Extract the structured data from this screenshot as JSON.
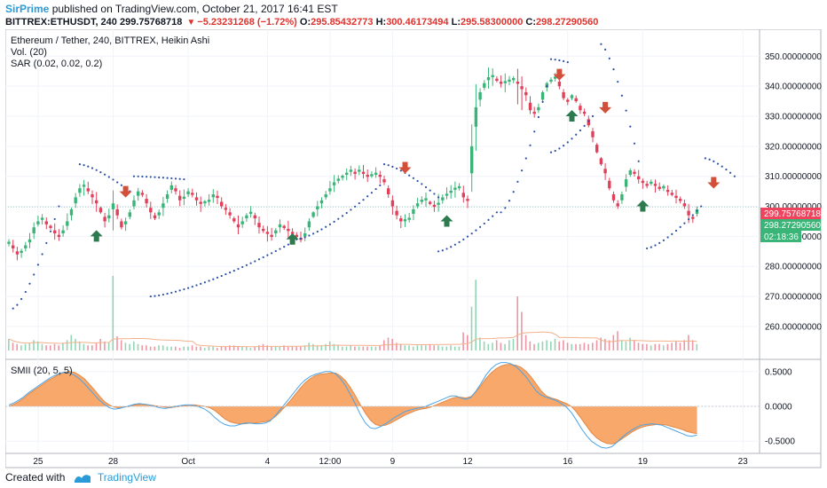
{
  "header": {
    "author": "SirPrime",
    "published_text": "published on TradingView.com, October 21, 2017 16:41 EST"
  },
  "ohlc_line": {
    "symbol": "BITTREX:ETHUSDT, 240",
    "last": "299.75768718",
    "change": "−5.23231268 (−1.72%)",
    "open_label": "O:",
    "open": "295.85432773",
    "high_label": "H:",
    "high": "300.46173494",
    "low_label": "L:",
    "low": "295.58300000",
    "close_label": "C:",
    "close": "298.27290560"
  },
  "footer": {
    "created_with": "Created with",
    "brand": "TradingView"
  },
  "colors": {
    "up": "#3bb478",
    "down": "#e0405a",
    "sar": "#2c50a8",
    "smii_fill": "#f8a86a",
    "smii_signal": "#4ba3e6",
    "buy_arrow": "#2e7a4f",
    "sell_arrow": "#d2503a",
    "last_price_bg": "#f0435e",
    "close_price_bg": "#3bb478",
    "timer_bg": "#3bb478"
  },
  "chart_data": [
    {
      "type": "candlestick",
      "title": "Ethereum / Tether, 240, BITTREX, Heikin Ashi",
      "indicators": [
        "Vol. (20)",
        "SAR (0.02, 0.02, 0.2)"
      ],
      "ylim": [
        252,
        356
      ],
      "y_ticks": [
        "350.00000000",
        "340.00000000",
        "330.00000000",
        "320.00000000",
        "310.00000000",
        "300.00000000",
        "290.00000000",
        "280.00000000",
        "270.00000000",
        "260.00000000"
      ],
      "x_ticks": [
        {
          "label": "25",
          "bar": 7
        },
        {
          "label": "28",
          "bar": 25
        },
        {
          "label": "Oct",
          "bar": 43
        },
        {
          "label": "4",
          "bar": 62
        },
        {
          "label": "12:00",
          "bar": 77
        },
        {
          "label": "9",
          "bar": 92
        },
        {
          "label": "12",
          "bar": 110
        },
        {
          "label": "16",
          "bar": 134
        },
        {
          "label": "19",
          "bar": 152
        },
        {
          "label": "23",
          "bar": 176
        }
      ],
      "price_labels": {
        "last": "299.75768718",
        "close": "298.27290560",
        "timer": "02:18:36"
      },
      "closes": [
        288,
        286,
        284,
        285,
        287,
        289,
        293,
        295,
        296,
        294,
        293,
        291,
        290,
        292,
        295,
        299,
        303,
        306,
        307,
        305,
        303,
        301,
        298,
        295,
        297,
        301,
        297,
        293,
        295,
        298,
        302,
        305,
        304,
        301,
        298,
        296,
        298,
        301,
        304,
        307,
        305,
        302,
        303,
        305,
        304,
        302,
        301,
        301,
        302,
        304,
        303,
        300,
        299,
        297,
        295,
        293,
        295,
        297,
        298,
        296,
        293,
        292,
        291,
        290,
        292,
        294,
        293,
        292,
        291,
        290,
        289,
        291,
        295,
        298,
        300,
        302,
        304,
        306,
        308,
        309,
        310,
        311,
        312,
        311,
        312,
        311,
        310,
        310,
        311,
        310,
        308,
        304,
        300,
        297,
        295,
        295,
        296,
        299,
        301,
        302,
        302,
        301,
        300,
        301,
        303,
        304,
        305,
        306,
        306,
        303,
        302,
        320,
        333,
        338,
        341,
        343,
        343,
        342,
        341,
        341,
        342,
        342,
        341,
        339,
        337,
        332,
        331,
        333,
        338,
        341,
        342,
        343,
        340,
        336,
        335,
        337,
        335,
        332,
        331,
        327,
        323,
        318,
        314,
        311,
        306,
        302,
        300,
        304,
        309,
        312,
        311,
        309,
        308,
        307,
        308,
        307,
        306,
        306,
        305,
        304,
        303,
        302,
        300,
        297,
        296,
        299
      ],
      "volumes": [
        9,
        6,
        5,
        4,
        5,
        6,
        8,
        7,
        5,
        4,
        4,
        5,
        4,
        6,
        8,
        12,
        9,
        7,
        5,
        4,
        4,
        6,
        9,
        7,
        6,
        58,
        11,
        8,
        6,
        5,
        7,
        5,
        4,
        4,
        3,
        3,
        4,
        4,
        3,
        3,
        3,
        2,
        3,
        3,
        4,
        3,
        3,
        2,
        3,
        3,
        2,
        3,
        3,
        4,
        4,
        3,
        3,
        3,
        2,
        3,
        4,
        5,
        4,
        3,
        3,
        3,
        4,
        3,
        3,
        3,
        3,
        4,
        6,
        5,
        4,
        4,
        5,
        7,
        5,
        4,
        3,
        3,
        4,
        3,
        3,
        3,
        3,
        3,
        3,
        4,
        8,
        10,
        9,
        6,
        5,
        4,
        4,
        3,
        4,
        4,
        4,
        5,
        4,
        4,
        3,
        3,
        4,
        3,
        3,
        14,
        12,
        34,
        55,
        10,
        7,
        5,
        6,
        8,
        6,
        5,
        8,
        9,
        42,
        30,
        12,
        7,
        5,
        6,
        7,
        8,
        7,
        9,
        7,
        8,
        6,
        5,
        5,
        5,
        6,
        5,
        6,
        8,
        10,
        9,
        8,
        12,
        15,
        8,
        7,
        10,
        8,
        6,
        5,
        5,
        4,
        5,
        5,
        4,
        5,
        6,
        7,
        6,
        8,
        12,
        8,
        5
      ],
      "sar_segments": [
        {
          "from": 1,
          "to": 12,
          "y0": 266,
          "y1": 300
        },
        {
          "from": 17,
          "to": 29,
          "y0": 314,
          "y1": 305
        },
        {
          "from": 30,
          "to": 42,
          "y0": 310,
          "y1": 309
        },
        {
          "from": 34,
          "to": 68,
          "y0": 270,
          "y1": 288
        },
        {
          "from": 69,
          "to": 89,
          "y0": 289,
          "y1": 307
        },
        {
          "from": 90,
          "to": 103,
          "y0": 314,
          "y1": 303
        },
        {
          "from": 103,
          "to": 117,
          "y0": 285,
          "y1": 298
        },
        {
          "from": 118,
          "to": 129,
          "y0": 298,
          "y1": 340
        },
        {
          "from": 130,
          "to": 134,
          "y0": 349,
          "y1": 348
        },
        {
          "from": 130,
          "to": 140,
          "y0": 318,
          "y1": 330
        },
        {
          "from": 142,
          "to": 151,
          "y0": 354,
          "y1": 315
        },
        {
          "from": 153,
          "to": 166,
          "y0": 286,
          "y1": 300
        },
        {
          "from": 167,
          "to": 174,
          "y0": 316,
          "y1": 310
        }
      ],
      "signals": [
        {
          "bar": 21,
          "kind": "buy",
          "price": 290
        },
        {
          "bar": 28,
          "kind": "sell",
          "price": 305
        },
        {
          "bar": 68,
          "kind": "buy",
          "price": 289
        },
        {
          "bar": 95,
          "kind": "sell",
          "price": 313
        },
        {
          "bar": 105,
          "kind": "buy",
          "price": 295
        },
        {
          "bar": 132,
          "kind": "sell",
          "price": 344
        },
        {
          "bar": 135,
          "kind": "buy",
          "price": 330
        },
        {
          "bar": 143,
          "kind": "sell",
          "price": 333
        },
        {
          "bar": 152,
          "kind": "buy",
          "price": 300
        },
        {
          "bar": 169,
          "kind": "sell",
          "price": 308
        }
      ]
    },
    {
      "type": "area",
      "title": "SMII (20, 5, 5)",
      "ylim": [
        -0.65,
        0.65
      ],
      "y_ticks": [
        "0.5000",
        "0.0000",
        "-0.5000"
      ],
      "series": [
        {
          "values": [
            0.0,
            0.03,
            0.07,
            0.12,
            0.18,
            0.23,
            0.28,
            0.33,
            0.38,
            0.42,
            0.46,
            0.49,
            0.5,
            0.49,
            0.45,
            0.4,
            0.32,
            0.24,
            0.15,
            0.07,
            0.02,
            -0.01,
            -0.02,
            -0.01,
            0.0,
            0.02,
            0.03,
            0.03,
            0.02,
            0.01,
            0.0,
            -0.01,
            -0.02,
            -0.01,
            0.0,
            0.01,
            0.02,
            0.02,
            0.01,
            0.0,
            -0.02,
            -0.06,
            -0.12,
            -0.18,
            -0.22,
            -0.24,
            -0.25,
            -0.25,
            -0.24,
            -0.24,
            -0.23,
            -0.22,
            -0.2,
            -0.15,
            -0.08,
            0.0,
            0.08,
            0.17,
            0.26,
            0.34,
            0.4,
            0.44,
            0.46,
            0.47,
            0.48,
            0.48,
            0.44,
            0.37,
            0.27,
            0.15,
            0.02,
            -0.1,
            -0.2,
            -0.26,
            -0.28,
            -0.27,
            -0.24,
            -0.2,
            -0.16,
            -0.12,
            -0.09,
            -0.06,
            -0.04,
            -0.03,
            -0.01,
            0.02,
            0.05,
            0.08,
            0.11,
            0.13,
            0.13,
            0.12,
            0.14,
            0.21,
            0.3,
            0.4,
            0.48,
            0.54,
            0.58,
            0.6,
            0.6,
            0.59,
            0.56,
            0.5,
            0.42,
            0.32,
            0.22,
            0.15,
            0.12,
            0.1,
            0.07,
            0.04,
            0.0,
            -0.08,
            -0.18,
            -0.28,
            -0.38,
            -0.45,
            -0.5,
            -0.53,
            -0.54,
            -0.52,
            -0.47,
            -0.42,
            -0.37,
            -0.33,
            -0.3,
            -0.28,
            -0.27,
            -0.26,
            -0.26,
            -0.27,
            -0.29,
            -0.31,
            -0.33,
            -0.36,
            -0.38,
            -0.39
          ]
        },
        {
          "values": [
            0.02,
            0.05,
            0.09,
            0.14,
            0.2,
            0.25,
            0.3,
            0.35,
            0.4,
            0.44,
            0.47,
            0.49,
            0.48,
            0.45,
            0.4,
            0.33,
            0.25,
            0.17,
            0.09,
            0.03,
            -0.02,
            -0.04,
            -0.03,
            -0.01,
            0.01,
            0.03,
            0.04,
            0.03,
            0.02,
            0.0,
            -0.02,
            -0.03,
            -0.02,
            0.0,
            0.01,
            0.02,
            0.02,
            0.01,
            -0.01,
            -0.04,
            -0.09,
            -0.16,
            -0.22,
            -0.26,
            -0.28,
            -0.28,
            -0.26,
            -0.24,
            -0.24,
            -0.25,
            -0.25,
            -0.24,
            -0.21,
            -0.14,
            -0.05,
            0.04,
            0.13,
            0.22,
            0.31,
            0.38,
            0.43,
            0.46,
            0.48,
            0.5,
            0.5,
            0.47,
            0.4,
            0.3,
            0.17,
            0.03,
            -0.12,
            -0.24,
            -0.31,
            -0.32,
            -0.29,
            -0.25,
            -0.2,
            -0.15,
            -0.11,
            -0.07,
            -0.05,
            -0.03,
            -0.02,
            0.0,
            0.03,
            0.06,
            0.09,
            0.12,
            0.15,
            0.15,
            0.12,
            0.1,
            0.13,
            0.22,
            0.33,
            0.45,
            0.54,
            0.6,
            0.63,
            0.63,
            0.61,
            0.57,
            0.5,
            0.42,
            0.32,
            0.22,
            0.16,
            0.13,
            0.11,
            0.08,
            0.04,
            -0.01,
            -0.09,
            -0.2,
            -0.32,
            -0.42,
            -0.5,
            -0.55,
            -0.59,
            -0.6,
            -0.58,
            -0.52,
            -0.45,
            -0.39,
            -0.34,
            -0.3,
            -0.27,
            -0.26,
            -0.25,
            -0.26,
            -0.27,
            -0.3,
            -0.33,
            -0.36,
            -0.39,
            -0.42,
            -0.43,
            -0.41
          ]
        }
      ]
    }
  ]
}
